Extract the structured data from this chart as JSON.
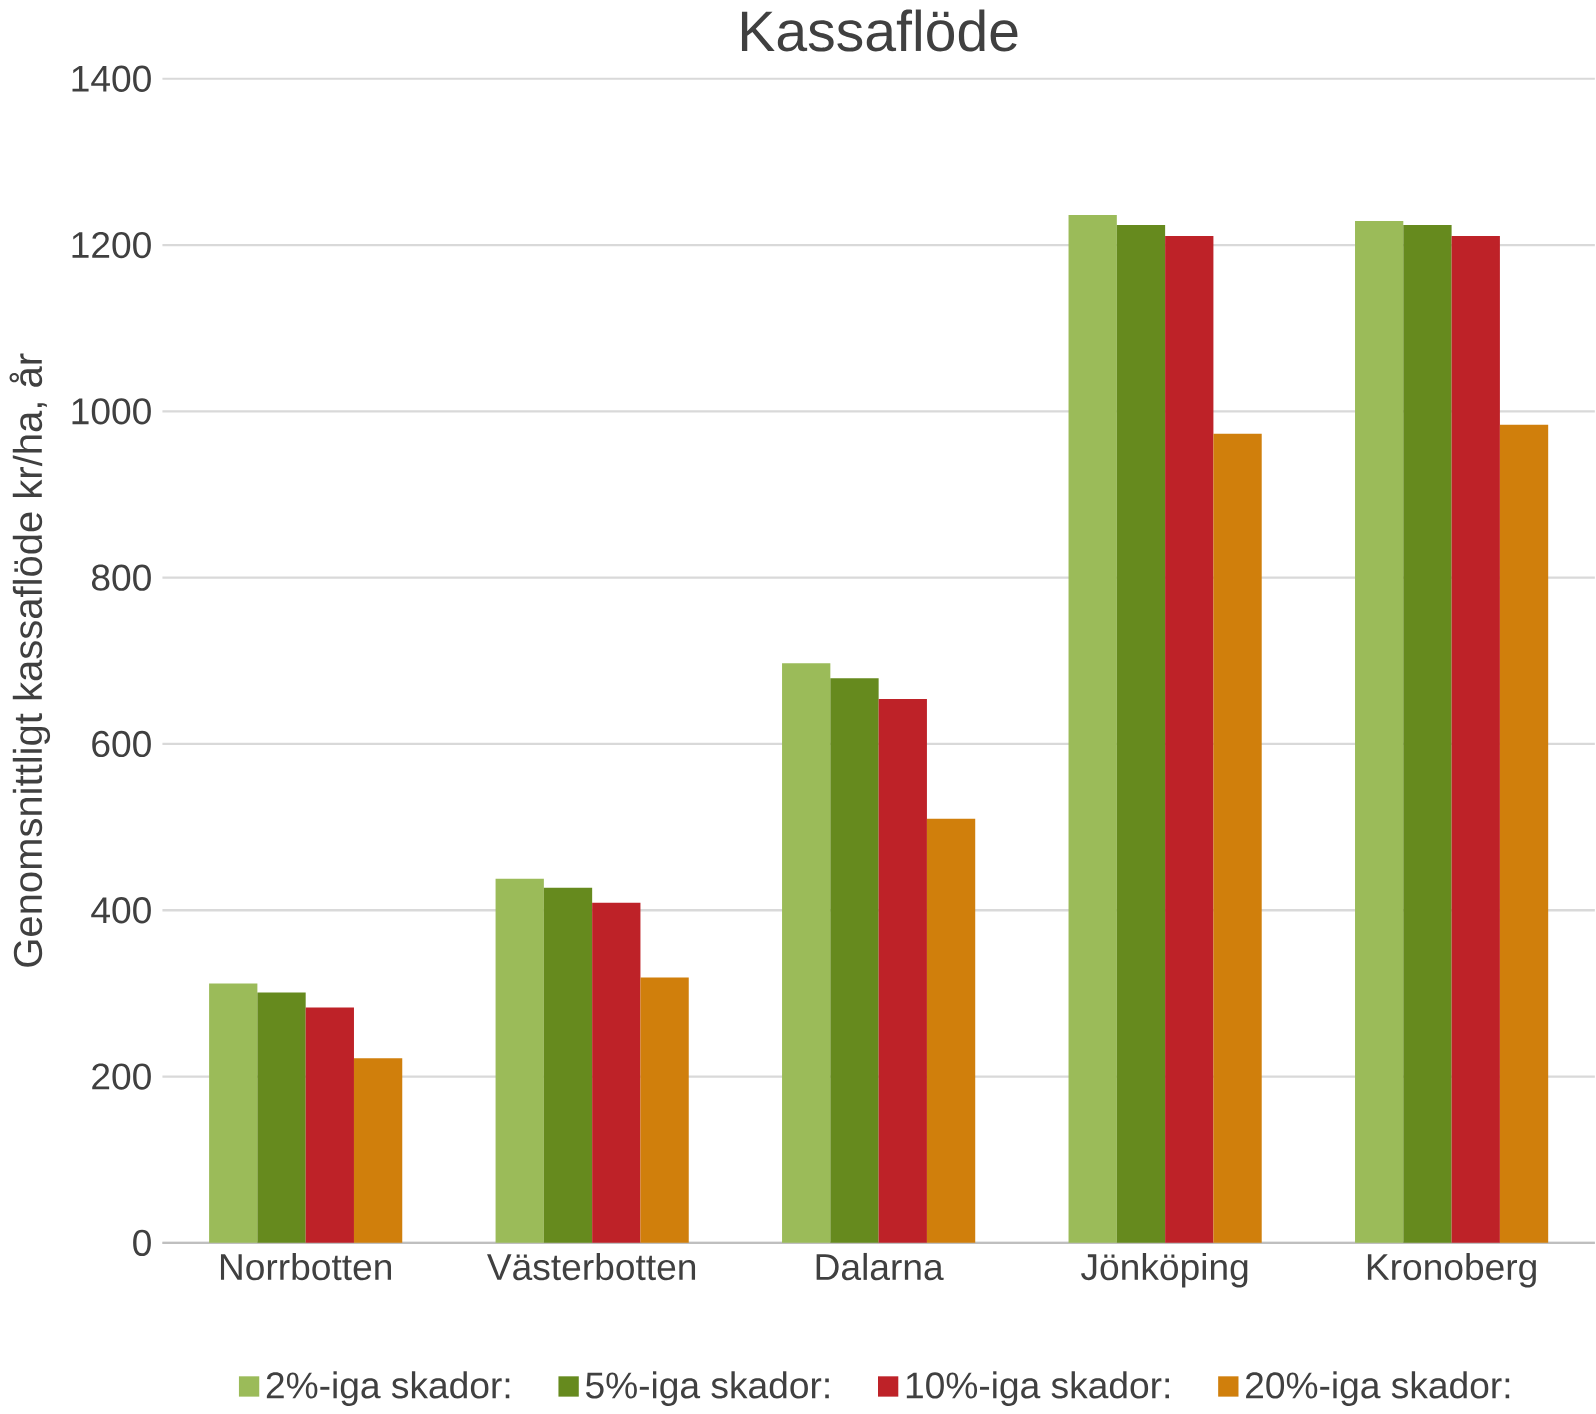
{
  "chart_data": {
    "type": "bar",
    "title": "Kassaflöde",
    "ylabel": "Genomsnittligt kassaflöde kr/ha, år",
    "categories": [
      "Norrbotten",
      "Västerbotten",
      "Dalarna",
      "Jönköping",
      "Kronoberg"
    ],
    "series": [
      {
        "name": "2%-iga skador:",
        "color": "#9bbb59",
        "values": [
          312,
          438,
          697,
          1236,
          1229
        ]
      },
      {
        "name": "5%-iga skador:",
        "color": "#668a1e",
        "values": [
          301,
          427,
          679,
          1224,
          1224
        ]
      },
      {
        "name": "10%-iga skador:",
        "color": "#be2228",
        "values": [
          283,
          409,
          654,
          1211,
          1211
        ]
      },
      {
        "name": "20%-iga skador:",
        "color": "#d07f0c",
        "values": [
          222,
          319,
          510,
          973,
          984
        ]
      }
    ],
    "ylim": [
      0,
      1400
    ],
    "yticks": [
      0,
      200,
      400,
      600,
      800,
      1000,
      1200,
      1400
    ],
    "grid": "y",
    "legend": "bottom"
  }
}
